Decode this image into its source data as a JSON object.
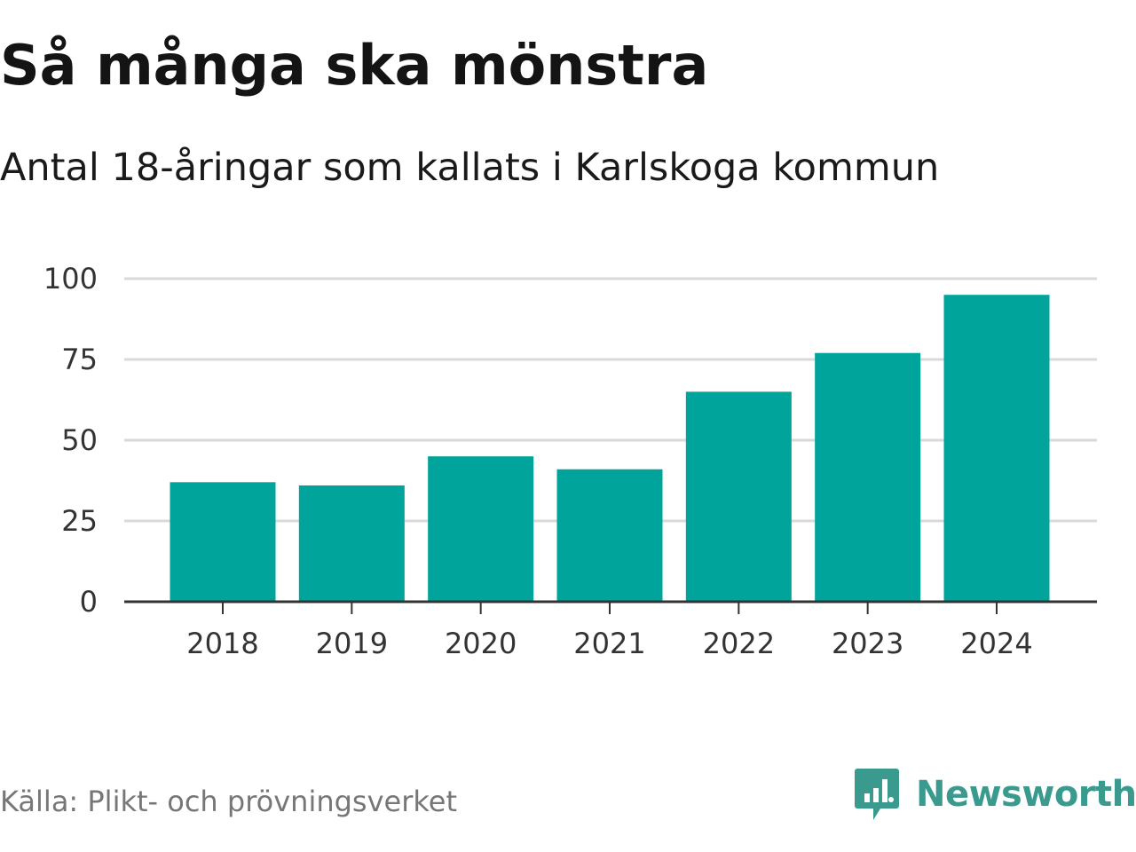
{
  "title": "Så många ska mönstra",
  "subtitle": "Antal 18-åringar som kallats i Karlskoga kommun",
  "source": "Källa: Plikt- och prövningsverket",
  "brand": {
    "name": "Newsworthy",
    "icon": "newsworthy-logo-icon",
    "color": "#3a9a8e"
  },
  "colors": {
    "bar": "#00a49a",
    "grid": "#d9d9d9",
    "axis": "#333333"
  },
  "chart_data": {
    "type": "bar",
    "title": "Så många ska mönstra",
    "subtitle": "Antal 18-åringar som kallats i Karlskoga kommun",
    "xlabel": "",
    "ylabel": "",
    "categories": [
      "2018",
      "2019",
      "2020",
      "2021",
      "2022",
      "2023",
      "2024"
    ],
    "values": [
      37,
      36,
      45,
      41,
      65,
      77,
      95
    ],
    "ylim": [
      0,
      100
    ],
    "yticks": [
      0,
      25,
      50,
      75,
      100
    ],
    "grid": true,
    "legend": "none"
  }
}
